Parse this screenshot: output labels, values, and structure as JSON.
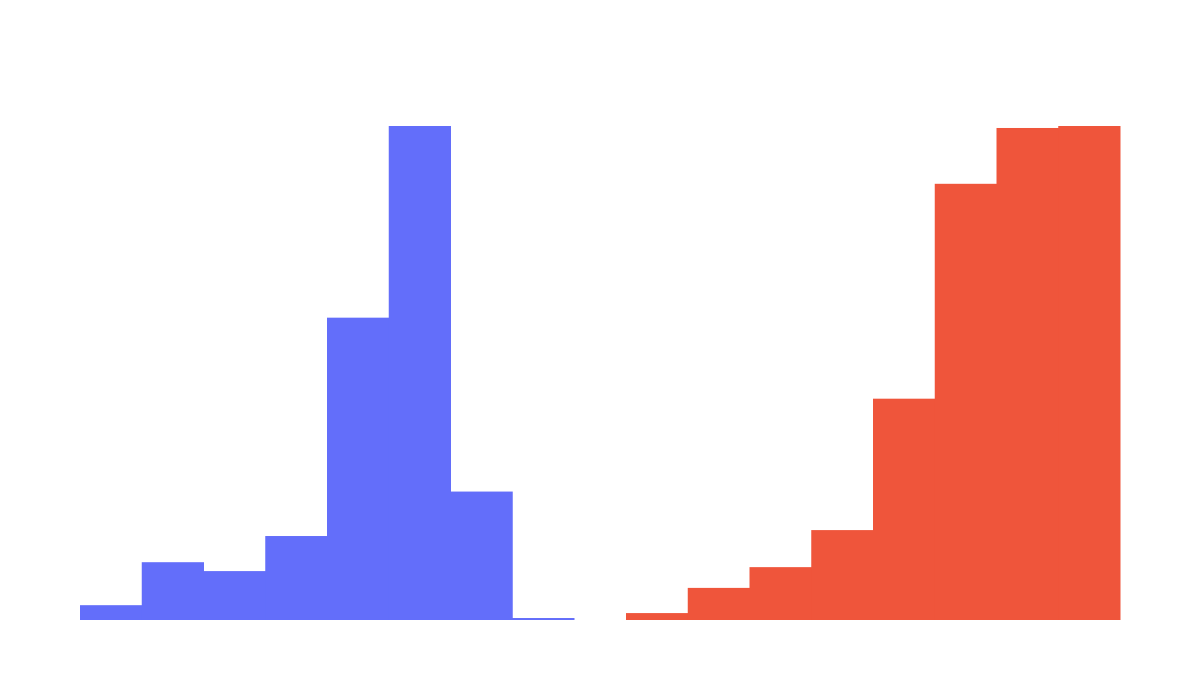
{
  "chart_data": [
    {
      "type": "bar",
      "title": "",
      "xlabel": "",
      "ylabel": "",
      "ylim": [
        0,
        100
      ],
      "grid": false,
      "legend": "none",
      "color": "#636efa",
      "bins": 8,
      "values": [
        3.0,
        11.7,
        9.9,
        17.0,
        61.2,
        100,
        26.0,
        0.4
      ]
    },
    {
      "type": "bar",
      "title": "",
      "xlabel": "",
      "ylabel": "",
      "ylim": [
        0,
        100
      ],
      "grid": false,
      "legend": "none",
      "color": "#ef553b",
      "bins": 8,
      "values": [
        1.4,
        6.5,
        10.7,
        18.2,
        44.8,
        88.3,
        99.6,
        100
      ]
    }
  ]
}
